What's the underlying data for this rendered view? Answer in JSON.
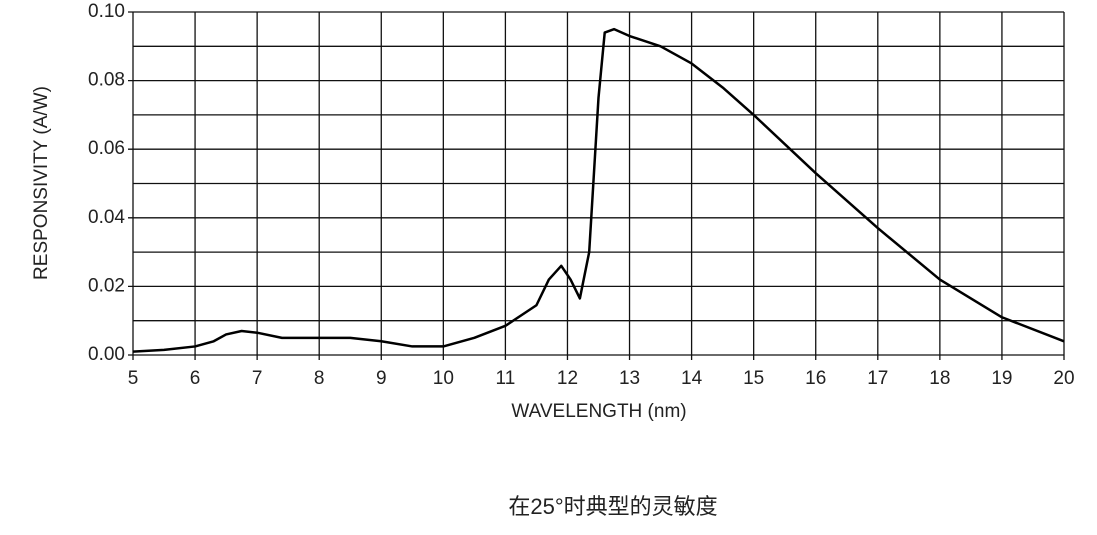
{
  "chart_data": {
    "type": "line",
    "x_label": "WAVELENGTH (nm)",
    "y_label": "RESPONSIVITY (A/W)",
    "caption": "在25°时典型的灵敏度",
    "xlim": [
      5,
      20
    ],
    "ylim": [
      0,
      0.1
    ],
    "xticks": [
      5,
      6,
      7,
      8,
      9,
      10,
      11,
      12,
      13,
      14,
      15,
      16,
      17,
      18,
      19,
      20
    ],
    "yticks": [
      {
        "value": 0,
        "label": "0.00"
      },
      {
        "value": 0.02,
        "label": "0.02"
      },
      {
        "value": 0.04,
        "label": "0.04"
      },
      {
        "value": 0.06,
        "label": "0.06"
      },
      {
        "value": 0.08,
        "label": "0.08"
      },
      {
        "value": 0.1,
        "label": "0.10"
      }
    ],
    "minor_yticks": [
      0.01,
      0.03,
      0.05,
      0.07,
      0.09
    ],
    "grid": true,
    "x": [
      5,
      5.5,
      6,
      6.3,
      6.5,
      6.75,
      7,
      7.4,
      8,
      8.5,
      9,
      9.5,
      10,
      10.5,
      11,
      11.5,
      11.7,
      11.9,
      12.05,
      12.2,
      12.35,
      12.5,
      12.6,
      12.75,
      13,
      13.5,
      14,
      14.5,
      15,
      16,
      17,
      18,
      19,
      20
    ],
    "series": [
      {
        "color": "#000000",
        "values": [
          0.001,
          0.0015,
          0.0025,
          0.004,
          0.006,
          0.007,
          0.0065,
          0.005,
          0.005,
          0.005,
          0.004,
          0.0025,
          0.0025,
          0.005,
          0.0085,
          0.0145,
          0.022,
          0.026,
          0.022,
          0.0165,
          0.03,
          0.075,
          0.094,
          0.095,
          0.093,
          0.09,
          0.085,
          0.078,
          0.07,
          0.053,
          0.037,
          0.022,
          0.011,
          0.004
        ]
      }
    ]
  }
}
